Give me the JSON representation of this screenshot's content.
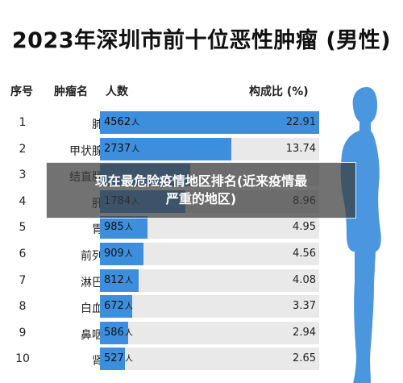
{
  "title": "2023年深圳市前十位恶性肿瘤 (男性)",
  "headers": {
    "rank": "序号",
    "cancer": "肿瘤名",
    "count": "人数",
    "ratio": "构成比 (%)"
  },
  "overlay_banner": {
    "line1": "现在最危险疫情地区排名(近来疫情最",
    "line2": "严重的地区)"
  },
  "unit": "人",
  "colors": {
    "bar": "#3d8fde",
    "track": "#e9e9e9",
    "silhouette": "#4a97e0"
  },
  "chart_data": {
    "type": "bar",
    "title": "2023年深圳市前十位恶性肿瘤 (男性)",
    "orientation": "horizontal",
    "categories": [
      "肺癌",
      "甲状腺癌",
      "结直肠癌",
      "肝癌",
      "胃癌",
      "前列腺",
      "淋巴瘤",
      "白血病",
      "鼻咽癌",
      "肾癌"
    ],
    "ranks": [
      "1",
      "2",
      "3",
      "4",
      "5",
      "6",
      "7",
      "8",
      "9",
      "10"
    ],
    "values": [
      4562,
      2737,
      1876,
      1784,
      985,
      909,
      812,
      672,
      586,
      527
    ],
    "value_labels": [
      "4562",
      "2737",
      "",
      "1784",
      "985",
      "909",
      "812",
      "672",
      "586",
      "527"
    ],
    "ratios": [
      "22.91",
      "13.74",
      "",
      "8.96",
      "4.95",
      "4.56",
      "4.08",
      "3.37",
      "2.94",
      "2.65"
    ],
    "xlim": [
      0,
      4562
    ]
  }
}
